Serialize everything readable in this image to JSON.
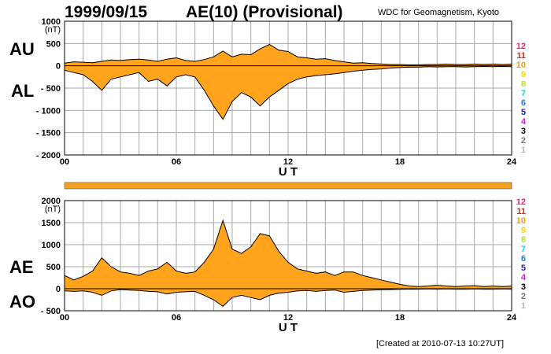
{
  "header": {
    "date": "1999/09/15",
    "title": "AE(10) (Provisional)",
    "organization": "WDC for Geomagnetism, Kyoto"
  },
  "footer": {
    "created": "[Created at 2010-07-13 10:27UT]"
  },
  "colors": {
    "fill": "#ffa41c",
    "outline": "#000000",
    "grid": "#a8a8a8",
    "bar": "#f7a21d"
  },
  "station_legend": [
    {
      "n": "12",
      "color": "#ff1a6e"
    },
    {
      "n": "11",
      "color": "#e22800"
    },
    {
      "n": "10",
      "color": "#ff9a00"
    },
    {
      "n": "9",
      "color": "#ffd400"
    },
    {
      "n": "8",
      "color": "#b5e61d"
    },
    {
      "n": "7",
      "color": "#19d3e0"
    },
    {
      "n": "6",
      "color": "#1e78ff"
    },
    {
      "n": "5",
      "color": "#2a19c8"
    },
    {
      "n": "4",
      "color": "#d020d8"
    },
    {
      "n": "3",
      "color": "#000000"
    },
    {
      "n": "2",
      "color": "#777777"
    },
    {
      "n": "1",
      "color": "#b8b8b8"
    }
  ],
  "chart_data": [
    {
      "type": "area",
      "id": "AU-AL",
      "upper_label": "AU",
      "lower_label": "AL",
      "unit": "(nT)",
      "xlabel": "U T",
      "xlim": [
        0,
        24
      ],
      "ylim": [
        -2000,
        1000
      ],
      "x_ticks": [
        "00",
        "06",
        "12",
        "18",
        "24"
      ],
      "y_ticks": [
        "1000",
        "500",
        "0",
        "- 500",
        "- 1000",
        "- 1500",
        "- 2000"
      ],
      "grid": true,
      "series": [
        {
          "name": "AU",
          "x": [
            0,
            0.5,
            1,
            1.5,
            2,
            2.5,
            3,
            3.5,
            4,
            4.5,
            5,
            5.5,
            6,
            6.5,
            7,
            7.5,
            8,
            8.5,
            9,
            9.5,
            10,
            10.5,
            11,
            11.5,
            12,
            12.5,
            13,
            13.5,
            14,
            14.5,
            15,
            15.5,
            16,
            16.5,
            17,
            17.5,
            18,
            18.5,
            19,
            19.5,
            20,
            20.5,
            21,
            21.5,
            22,
            22.5,
            23,
            23.5,
            24
          ],
          "values": [
            60,
            90,
            80,
            70,
            100,
            130,
            120,
            140,
            150,
            130,
            100,
            150,
            180,
            120,
            100,
            140,
            200,
            330,
            200,
            260,
            250,
            380,
            480,
            350,
            320,
            200,
            180,
            150,
            160,
            120,
            90,
            60,
            70,
            50,
            40,
            30,
            30,
            20,
            20,
            30,
            30,
            40,
            30,
            30,
            40,
            30,
            40,
            30,
            40
          ]
        },
        {
          "name": "AL",
          "x": [
            0,
            0.5,
            1,
            1.5,
            2,
            2.5,
            3,
            3.5,
            4,
            4.5,
            5,
            5.5,
            6,
            6.5,
            7,
            7.5,
            8,
            8.5,
            9,
            9.5,
            10,
            10.5,
            11,
            11.5,
            12,
            12.5,
            13,
            13.5,
            14,
            14.5,
            15,
            15.5,
            16,
            16.5,
            17,
            17.5,
            18,
            18.5,
            19,
            19.5,
            20,
            20.5,
            21,
            21.5,
            22,
            22.5,
            23,
            23.5,
            24
          ],
          "values": [
            -100,
            -150,
            -200,
            -350,
            -550,
            -300,
            -250,
            -200,
            -150,
            -350,
            -300,
            -450,
            -250,
            -200,
            -250,
            -550,
            -900,
            -1200,
            -800,
            -600,
            -700,
            -900,
            -700,
            -550,
            -400,
            -300,
            -250,
            -220,
            -200,
            -180,
            -150,
            -120,
            -100,
            -80,
            -70,
            -50,
            -40,
            -30,
            -30,
            -20,
            -25,
            -20,
            -20,
            -25,
            -20,
            -15,
            -20,
            -15,
            -20
          ]
        }
      ]
    },
    {
      "type": "area",
      "id": "AE-AO",
      "upper_label": "AE",
      "lower_label": "AO",
      "unit": "(nT)",
      "xlabel": "U T",
      "xlim": [
        0,
        24
      ],
      "ylim": [
        -500,
        2000
      ],
      "x_ticks": [
        "00",
        "06",
        "12",
        "18",
        "24"
      ],
      "y_ticks": [
        "2000",
        "1500",
        "1000",
        "500",
        "0",
        "- 500"
      ],
      "grid": true,
      "series": [
        {
          "name": "AE",
          "x": [
            0,
            0.5,
            1,
            1.5,
            2,
            2.5,
            3,
            3.5,
            4,
            4.5,
            5,
            5.5,
            6,
            6.5,
            7,
            7.5,
            8,
            8.5,
            9,
            9.5,
            10,
            10.5,
            11,
            11.5,
            12,
            12.5,
            13,
            13.5,
            14,
            14.5,
            15,
            15.5,
            16,
            16.5,
            17,
            17.5,
            18,
            18.5,
            19,
            19.5,
            20,
            20.5,
            21,
            21.5,
            22,
            22.5,
            23,
            23.5,
            24
          ],
          "values": [
            300,
            200,
            280,
            400,
            700,
            500,
            380,
            350,
            300,
            400,
            450,
            600,
            400,
            350,
            380,
            600,
            900,
            1550,
            900,
            800,
            950,
            1250,
            1200,
            850,
            600,
            450,
            400,
            350,
            380,
            300,
            380,
            380,
            300,
            250,
            200,
            150,
            100,
            60,
            50,
            60,
            80,
            60,
            50,
            60,
            70,
            50,
            60,
            50,
            60
          ]
        },
        {
          "name": "AO",
          "x": [
            0,
            0.5,
            1,
            1.5,
            2,
            2.5,
            3,
            3.5,
            4,
            4.5,
            5,
            5.5,
            6,
            6.5,
            7,
            7.5,
            8,
            8.5,
            9,
            9.5,
            10,
            10.5,
            11,
            11.5,
            12,
            12.5,
            13,
            13.5,
            14,
            14.5,
            15,
            15.5,
            16,
            16.5,
            17,
            17.5,
            18,
            18.5,
            19,
            19.5,
            20,
            20.5,
            21,
            21.5,
            22,
            22.5,
            23,
            23.5,
            24
          ],
          "values": [
            -50,
            -60,
            -50,
            -80,
            -150,
            -50,
            -20,
            -30,
            -40,
            -60,
            -70,
            -120,
            -80,
            -70,
            -60,
            -150,
            -250,
            -400,
            -200,
            -150,
            -200,
            -250,
            -150,
            -100,
            -80,
            -50,
            -40,
            -60,
            -40,
            -30,
            -80,
            -60,
            -40,
            -30,
            -25,
            -20,
            -15,
            -10,
            -10,
            -5,
            -10,
            -5,
            -10,
            -10,
            -5,
            -10,
            -10,
            -5,
            -10
          ]
        }
      ]
    }
  ]
}
